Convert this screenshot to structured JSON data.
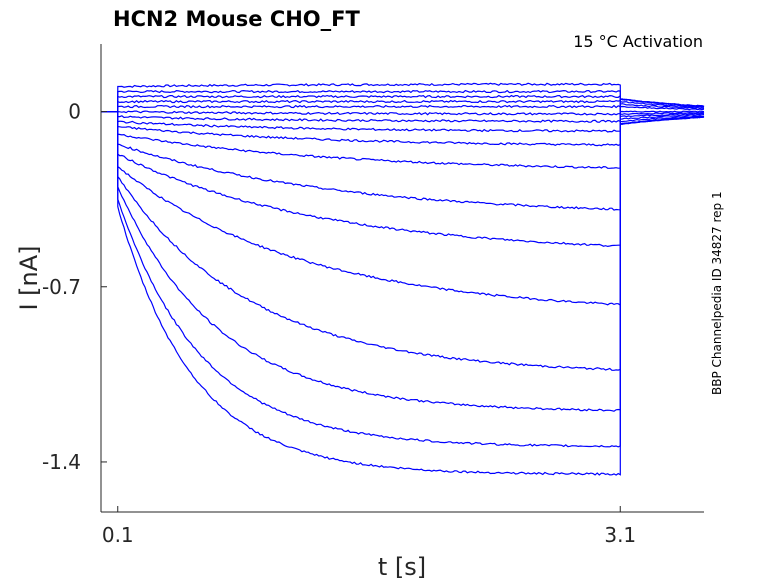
{
  "chart_data": {
    "type": "line",
    "title": "HCN2  Mouse  CHO_FT",
    "annotation": "15 °C  Activation",
    "side_label": "BBP Channelpedia ID 34827 rep 1",
    "xlabel": "t [s]",
    "ylabel": "I [nA]",
    "xlim": [
      0.0,
      3.6
    ],
    "ylim": [
      -1.6,
      0.27
    ],
    "xticks": [
      0.1,
      3.1
    ],
    "xtick_labels": [
      "0.1",
      "3.1"
    ],
    "yticks": [
      0,
      -0.7,
      -1.4
    ],
    "ytick_labels": [
      "0",
      "-0.7",
      "-1.4"
    ],
    "grid": false,
    "line_color": "#0000ff",
    "pulse": {
      "start": 0.1,
      "end": 3.1
    },
    "baseline_before": 0.0,
    "sweeps": [
      {
        "initial": 0.1,
        "steady": 0.11,
        "tau": 1.0,
        "tail": -0.05
      },
      {
        "initial": 0.08,
        "steady": 0.08,
        "tau": 1.0,
        "tail": -0.05
      },
      {
        "initial": 0.06,
        "steady": 0.06,
        "tau": 1.0,
        "tail": -0.05
      },
      {
        "initial": 0.04,
        "steady": 0.04,
        "tau": 1.0,
        "tail": -0.05
      },
      {
        "initial": 0.02,
        "steady": 0.02,
        "tau": 1.0,
        "tail": -0.05
      },
      {
        "initial": 0.0,
        "steady": -0.01,
        "tau": 1.0,
        "tail": -0.04
      },
      {
        "initial": -0.02,
        "steady": -0.04,
        "tau": 1.0,
        "tail": -0.03
      },
      {
        "initial": -0.04,
        "steady": -0.08,
        "tau": 1.0,
        "tail": -0.02
      },
      {
        "initial": -0.06,
        "steady": -0.14,
        "tau": 1.2,
        "tail": -0.01
      },
      {
        "initial": -0.09,
        "steady": -0.24,
        "tau": 1.3,
        "tail": 0.0
      },
      {
        "initial": -0.13,
        "steady": -0.42,
        "tau": 1.3,
        "tail": 0.02
      },
      {
        "initial": -0.17,
        "steady": -0.57,
        "tau": 1.2,
        "tail": 0.03
      },
      {
        "initial": -0.22,
        "steady": -0.81,
        "tau": 1.1,
        "tail": 0.04
      },
      {
        "initial": -0.26,
        "steady": -1.05,
        "tau": 0.8,
        "tail": 0.05
      },
      {
        "initial": -0.3,
        "steady": -1.2,
        "tau": 0.6,
        "tail": 0.05
      },
      {
        "initial": -0.35,
        "steady": -1.34,
        "tau": 0.5,
        "tail": 0.05
      },
      {
        "initial": -0.38,
        "steady": -1.45,
        "tau": 0.45,
        "tail": 0.05
      }
    ]
  }
}
